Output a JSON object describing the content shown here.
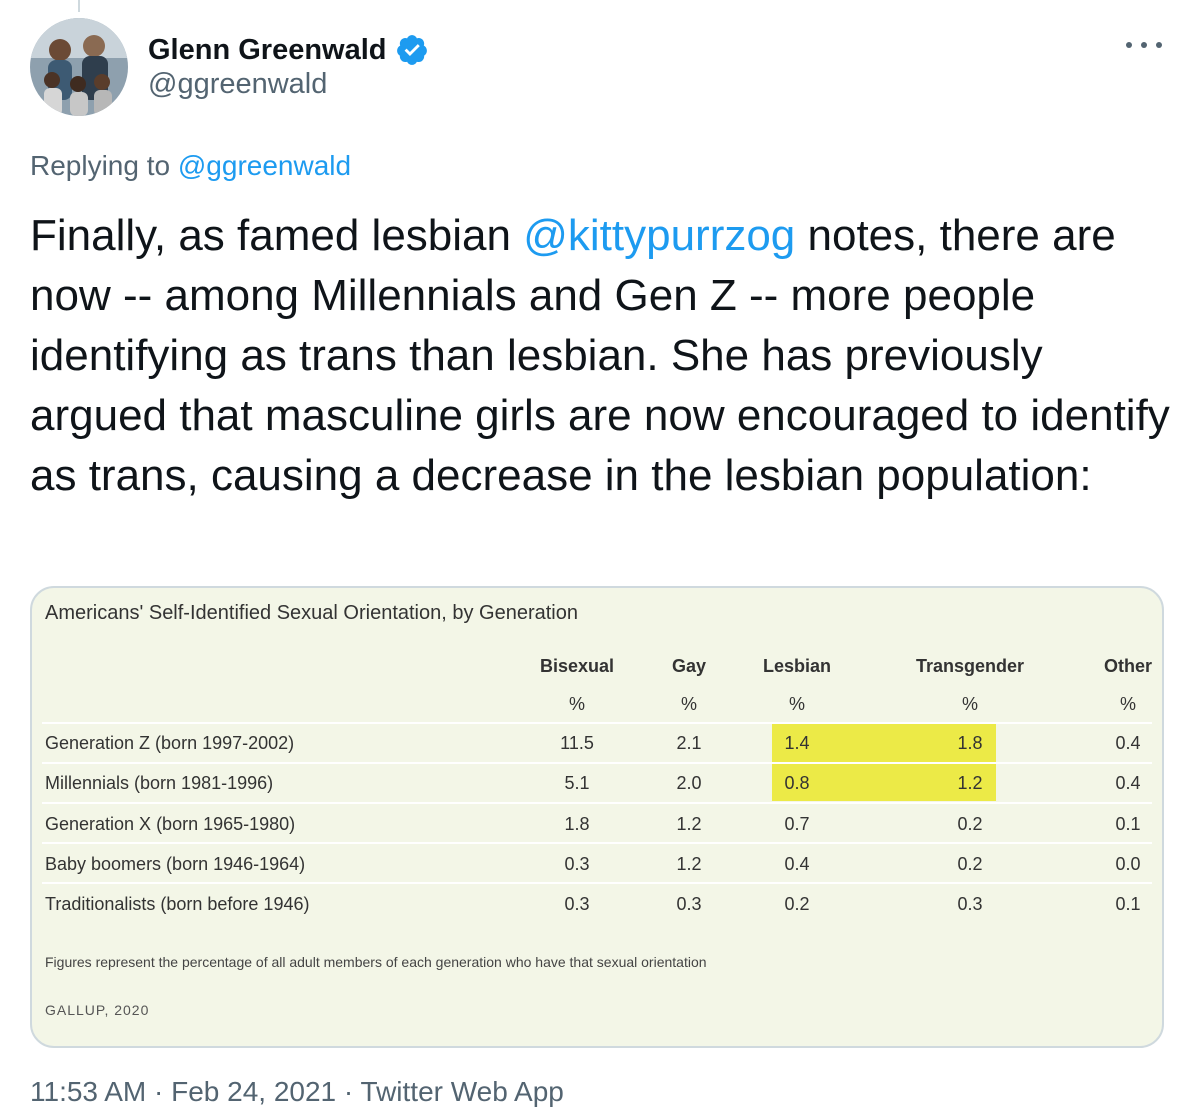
{
  "tweet": {
    "author": {
      "display_name": "Glenn Greenwald",
      "handle": "@ggreenwald",
      "verified": true
    },
    "replying_to": {
      "prefix": "Replying to",
      "handle": "@ggreenwald"
    },
    "text": {
      "part1": "Finally, as famed lesbian ",
      "mention": "@kittypurrzog",
      "part2": " notes, there are now -- among Millennials and Gen Z -- more people identifying as trans than lesbian. She has previously argued that masculine girls are now encouraged to identify as trans, causing a decrease in the lesbian population:"
    },
    "timestamp": "11:53 AM · Feb 24, 2021 · Twitter Web App"
  },
  "colors": {
    "accent": "#1d9bf0",
    "secondary_text": "#536471",
    "card_bg": "#f3f6e7",
    "highlight": "#ecea47"
  },
  "icons": {
    "verified": "verified-badge-icon",
    "more": "more-options-icon"
  },
  "table": {
    "title": "Americans' Self-Identified Sexual Orientation, by Generation",
    "columns": [
      {
        "header": "Bisexual",
        "unit": "%"
      },
      {
        "header": "Gay",
        "unit": "%"
      },
      {
        "header": "Lesbian",
        "unit": "%"
      },
      {
        "header": "Transgender",
        "unit": "%"
      },
      {
        "header": "Other",
        "unit": "%"
      }
    ],
    "rows": [
      {
        "label": "Generation Z (born 1997-2002)",
        "values": [
          "11.5",
          "2.1",
          "1.4",
          "1.8",
          "0.4"
        ]
      },
      {
        "label": "Millennials (born 1981-1996)",
        "values": [
          "5.1",
          "2.0",
          "0.8",
          "1.2",
          "0.4"
        ]
      },
      {
        "label": "Generation X (born 1965-1980)",
        "values": [
          "1.8",
          "1.2",
          "0.7",
          "0.2",
          "0.1"
        ]
      },
      {
        "label": "Baby boomers (born 1946-1964)",
        "values": [
          "0.3",
          "1.2",
          "0.4",
          "0.2",
          "0.0"
        ]
      },
      {
        "label": "Traditionalists (born before 1946)",
        "values": [
          "0.3",
          "0.3",
          "0.2",
          "0.3",
          "0.1"
        ]
      }
    ],
    "highlighted_cells": [
      {
        "row": 0,
        "col": 2
      },
      {
        "row": 0,
        "col": 3
      },
      {
        "row": 1,
        "col": 2
      },
      {
        "row": 1,
        "col": 3
      }
    ],
    "footnote": "Figures represent the percentage of all adult members of each generation who have that sexual orientation",
    "source": "GALLUP, 2020"
  }
}
